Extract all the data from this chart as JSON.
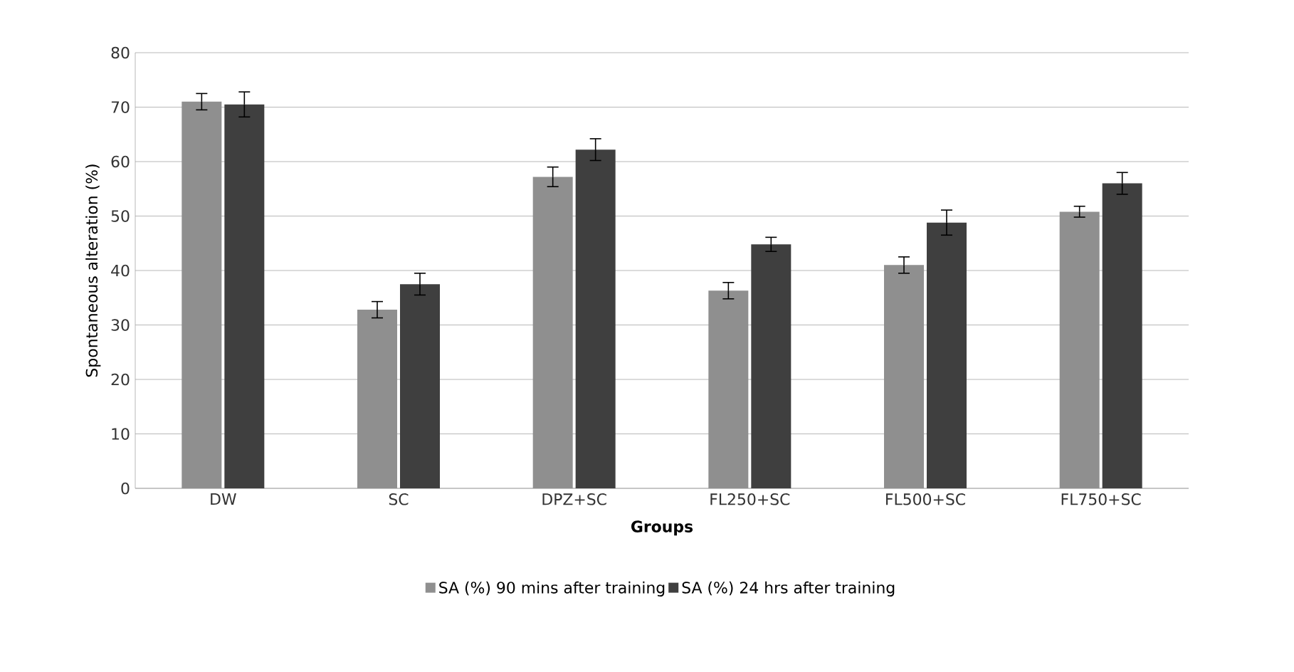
{
  "chart_data": {
    "type": "bar",
    "xlabel": "Groups",
    "ylabel": "Spontaneous alteration (%)",
    "categories": [
      "DW",
      "SC",
      "DPZ+SC",
      "FL250+SC",
      "FL500+SC",
      "FL750+SC"
    ],
    "series": [
      {
        "name": "SA (%) 90 mins after training",
        "color": "#8f8f8f",
        "values": [
          71,
          32.8,
          57.2,
          36.3,
          41,
          50.8
        ],
        "errors": [
          1.5,
          1.5,
          1.8,
          1.5,
          1.5,
          1.0
        ]
      },
      {
        "name": "SA (%) 24 hrs after training",
        "color": "#3f3f3f",
        "values": [
          70.5,
          37.5,
          62.2,
          44.8,
          48.8,
          56
        ],
        "errors": [
          2.3,
          2,
          2,
          1.3,
          2.3,
          2
        ]
      }
    ],
    "ylim": [
      0,
      80
    ],
    "yticks": [
      0,
      10,
      20,
      30,
      40,
      50,
      60,
      70,
      80
    ],
    "grid": "y",
    "legend": "bottom"
  }
}
